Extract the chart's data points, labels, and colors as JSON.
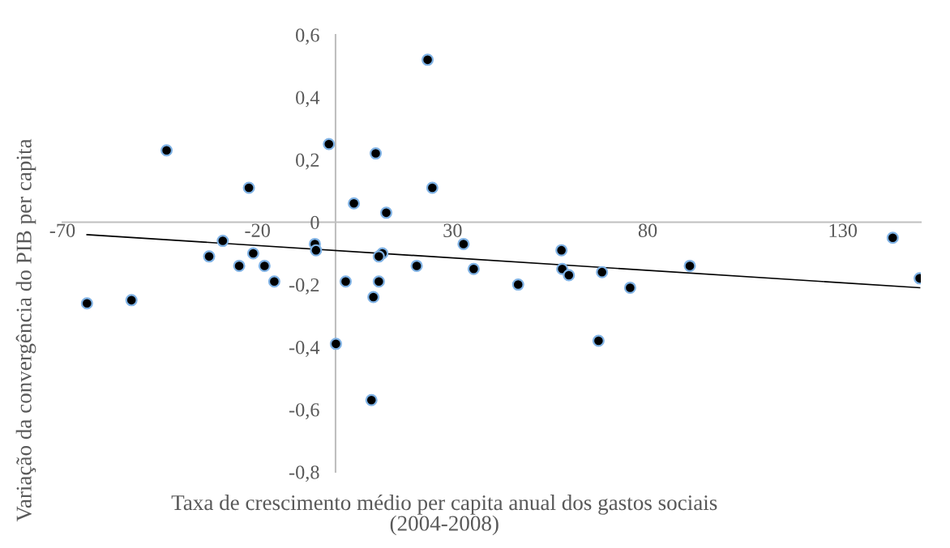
{
  "chart_data": {
    "type": "scatter",
    "xlabel": "Taxa de crescimento médio per capita anual dos gastos sociais\n(2004-2008)",
    "ylabel": "Variação da convergência do PIB per capita",
    "xlim": [
      -70,
      150
    ],
    "ylim": [
      -0.8,
      0.6
    ],
    "xticks": [
      -70,
      -20,
      30,
      80,
      130
    ],
    "yticks": [
      {
        "value": 0.6,
        "label": "0,6"
      },
      {
        "value": 0.4,
        "label": "0,4"
      },
      {
        "value": 0.2,
        "label": "0,2"
      },
      0,
      {
        "value": -0.2,
        "label": "-0,2"
      },
      {
        "value": -0.4,
        "label": "-0,4"
      },
      {
        "value": -0.6,
        "label": "-0,6"
      },
      {
        "value": -0.8,
        "label": "-0,8"
      }
    ],
    "series": [
      {
        "color": "#000000",
        "marker": "circle",
        "x": [
          -43.3,
          -1.7,
          -22.2,
          4.7,
          -28.9,
          -32.4,
          -21.1,
          -5.3,
          -5.0,
          -63.7,
          -52.3,
          -24.7,
          -18.2,
          -15.7,
          2.6,
          0.1,
          23.6,
          10.3,
          24.8,
          13.0,
          12.0,
          11.1,
          20.8,
          32.8,
          35.4,
          11.1,
          9.7,
          9.2,
          46.8,
          57.9,
          58.1,
          59.8,
          68.3,
          67.4,
          75.5,
          90.8,
          142.8,
          149.7
        ],
        "values": [
          0.23,
          0.25,
          0.11,
          0.06,
          -0.06,
          -0.11,
          -0.1,
          -0.07,
          -0.09,
          -0.26,
          -0.25,
          -0.14,
          -0.14,
          -0.19,
          -0.19,
          -0.39,
          0.52,
          0.22,
          0.11,
          0.03,
          -0.1,
          -0.11,
          -0.14,
          -0.07,
          -0.15,
          -0.19,
          -0.24,
          -0.57,
          -0.2,
          -0.09,
          -0.15,
          -0.17,
          -0.16,
          -0.38,
          -0.21,
          -0.14,
          -0.05,
          -0.18
        ]
      },
      {
        "type": "line",
        "color": "#000000",
        "line_style": "solid",
        "x": [
          -63.7,
          149.7
        ],
        "values": [
          -0.04,
          -0.21
        ]
      }
    ]
  }
}
